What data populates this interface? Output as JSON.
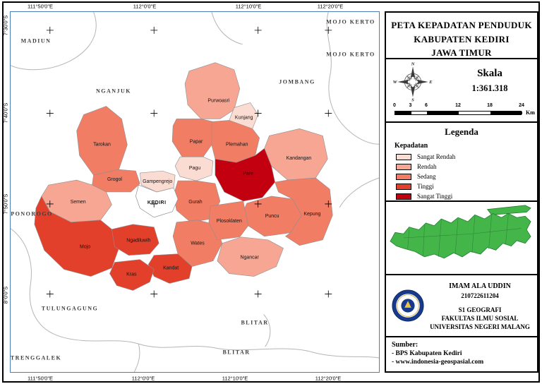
{
  "title_block": {
    "line1": "PETA KEPADATAN PENDUDUK",
    "line2": "KABUPATEN KEDIRI",
    "line3": "JAWA TIMUR"
  },
  "compass": {
    "n": "N",
    "e": "E",
    "s": "S",
    "w": "W"
  },
  "scale": {
    "label": "Skala",
    "value": "1:361.318",
    "ticks": [
      "0",
      "3",
      "6",
      "12",
      "18",
      "24"
    ],
    "unit": "Km"
  },
  "legend": {
    "title": "Legenda",
    "subtitle": "Kepadatan",
    "items": [
      {
        "label": "Sangat Rendah",
        "color": "#fbdcd2"
      },
      {
        "label": "Rendah",
        "color": "#f6a693"
      },
      {
        "label": "Sedang",
        "color": "#f07d64"
      },
      {
        "label": "Tinggi",
        "color": "#e2402a"
      },
      {
        "label": "Sangat Tinggi",
        "color": "#c2000f"
      }
    ]
  },
  "credits": {
    "name": "IMAM ALA UDDIN",
    "nim": "210722611204",
    "line3": "S1 GEOGRAFI",
    "line4": "FAKULTAS ILMU SOSIAL",
    "line5": "UNIVERSITAS NEGERI MALANG"
  },
  "sources": {
    "title": "Sumber:",
    "items": [
      "- BPS Kabupaten Kediri",
      "- www.indonesia-geospasial.com"
    ]
  },
  "map": {
    "city_label": "KEDIRI",
    "grid_top": [
      "111°50'0\"E",
      "112°0'0\"E",
      "112°10'0\"E",
      "112°20'0\"E"
    ],
    "grid_bottom": [
      "111°50'0\"E",
      "112°0'0\"E",
      "112°10'0\"E",
      "112°20'0\"E"
    ],
    "grid_left": [
      "7°30'0\"S",
      "7°40'0\"S",
      "7°50'0\"S",
      "8°0'0\"S"
    ],
    "neighbors": [
      "MADIUN",
      "MOJO KERTO",
      "MOJO KERTO",
      "NGANJUK",
      "JOMBANG",
      "PONOROGO",
      "TULUNGAGUNG",
      "TRENGGALEK",
      "BLITAR",
      "BLITAR"
    ],
    "districts": [
      {
        "name": "Purwoasri",
        "category": "Rendah"
      },
      {
        "name": "Kunjang",
        "category": "Sangat Rendah"
      },
      {
        "name": "Papar",
        "category": "Sedang"
      },
      {
        "name": "Plemahan",
        "category": "Sedang"
      },
      {
        "name": "Kandangan",
        "category": "Rendah"
      },
      {
        "name": "Tarokan",
        "category": "Sedang"
      },
      {
        "name": "Pagu",
        "category": "Sangat Rendah"
      },
      {
        "name": "Pare",
        "category": "Sangat Tinggi"
      },
      {
        "name": "Grogol",
        "category": "Sedang"
      },
      {
        "name": "Gampengrejo",
        "category": "Sangat Rendah"
      },
      {
        "name": "Gurah",
        "category": "Sedang"
      },
      {
        "name": "Semen",
        "category": "Rendah"
      },
      {
        "name": "Puncu",
        "category": "Sedang"
      },
      {
        "name": "Kepung",
        "category": "Sedang"
      },
      {
        "name": "Mojo",
        "category": "Tinggi"
      },
      {
        "name": "Ngadiluwih",
        "category": "Tinggi"
      },
      {
        "name": "Wates",
        "category": "Sedang"
      },
      {
        "name": "Plosoklaten",
        "category": "Sedang"
      },
      {
        "name": "Kandat",
        "category": "Tinggi"
      },
      {
        "name": "Ngancar",
        "category": "Rendah"
      },
      {
        "name": "Kras",
        "category": "Tinggi"
      }
    ]
  }
}
